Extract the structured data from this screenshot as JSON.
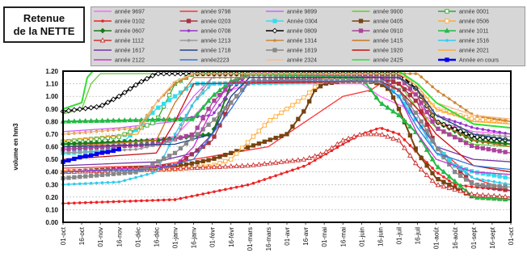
{
  "title": {
    "line1": "Retenue",
    "line2": "de la NETTE"
  },
  "chart_data": {
    "type": "line",
    "title": "Retenue de la NETTE",
    "ylabel": "volume en hm3",
    "xlabel": "",
    "ylim": [
      0,
      1.2
    ],
    "yticks": [
      "0.00",
      "0.10",
      "0.20",
      "0.30",
      "0.40",
      "0.50",
      "0.60",
      "0.70",
      "0.80",
      "0.90",
      "1.00",
      "1.10",
      "1.20"
    ],
    "x_ticks": [
      "01-oct",
      "16-oct",
      "01-nov",
      "16-nov",
      "01-déc",
      "16-déc",
      "01-janv",
      "16-janv",
      "01-févr",
      "16-févr",
      "01-mars",
      "16-mars",
      "01-avr",
      "16-avr",
      "01-mai",
      "16-mai",
      "01-juin",
      "16-juin",
      "01-juil",
      "16-juil",
      "01-août",
      "16-août",
      "01-sept",
      "16-sept",
      "01-oct"
    ],
    "grid": true,
    "legend_placement": "top",
    "series": [
      {
        "name": "année 9697",
        "color": "#ff66ff",
        "marker": "none",
        "x": [
          0,
          4,
          6,
          8,
          9,
          10,
          16,
          17,
          20,
          22,
          24
        ],
        "y": [
          0.6,
          0.65,
          0.68,
          1.0,
          1.05,
          1.1,
          1.1,
          1.0,
          0.8,
          0.72,
          0.7
        ]
      },
      {
        "name": "année 9798",
        "color": "#ff3333",
        "marker": "none",
        "x": [
          0,
          5,
          9,
          11,
          13,
          15,
          16.5,
          17,
          18,
          19,
          19.5,
          20,
          22,
          24
        ],
        "y": [
          0.43,
          0.45,
          0.55,
          0.6,
          0.8,
          1.0,
          1.05,
          1.1,
          1.1,
          1.0,
          0.8,
          0.6,
          0.35,
          0.25
        ]
      },
      {
        "name": "année 9899",
        "color": "#cc66ff",
        "marker": "none",
        "x": [
          0,
          3,
          6,
          7,
          8,
          17,
          18,
          19,
          20,
          22,
          24
        ],
        "y": [
          0.72,
          0.75,
          0.8,
          1.0,
          1.15,
          1.15,
          1.1,
          0.95,
          0.8,
          0.65,
          0.6
        ]
      },
      {
        "name": "année 9900",
        "color": "#66cc33",
        "marker": "none",
        "x": [
          0,
          1,
          1.5,
          2,
          17,
          18,
          19,
          20,
          22,
          24
        ],
        "y": [
          0.86,
          0.9,
          1.1,
          1.18,
          1.18,
          1.1,
          0.9,
          0.75,
          0.62,
          0.6
        ]
      },
      {
        "name": "année 0001",
        "color": "#33aa33",
        "marker": "square-open",
        "x": [
          0,
          3,
          5,
          6,
          7,
          18,
          19,
          20,
          22,
          24
        ],
        "y": [
          0.64,
          0.68,
          0.8,
          1.1,
          1.18,
          1.18,
          1.05,
          0.8,
          0.68,
          0.65
        ]
      },
      {
        "name": "année 0102",
        "color": "#ee2222",
        "marker": "dot",
        "x": [
          0,
          6,
          10,
          13,
          15,
          16,
          17,
          18,
          19,
          20,
          21,
          22,
          24
        ],
        "y": [
          0.15,
          0.18,
          0.3,
          0.45,
          0.62,
          0.7,
          0.75,
          0.7,
          0.55,
          0.4,
          0.3,
          0.28,
          0.25
        ]
      },
      {
        "name": "année 0203",
        "color": "#aa3344",
        "marker": "square",
        "x": [
          0,
          3,
          6,
          8,
          9,
          10,
          17,
          18,
          19,
          20,
          22,
          24
        ],
        "y": [
          0.4,
          0.42,
          0.45,
          0.65,
          0.95,
          1.12,
          1.15,
          1.1,
          0.95,
          0.6,
          0.3,
          0.25
        ]
      },
      {
        "name": "Année 0304",
        "color": "#33ddee",
        "marker": "square",
        "x": [
          0,
          2,
          3,
          5,
          7,
          17,
          18,
          19,
          20,
          21,
          22,
          24
        ],
        "y": [
          0.55,
          0.56,
          0.6,
          0.9,
          1.1,
          1.12,
          1.0,
          0.8,
          0.6,
          0.45,
          0.4,
          0.35
        ]
      },
      {
        "name": "année 0405",
        "color": "#774411",
        "marker": "square",
        "x": [
          0,
          3,
          6,
          8,
          10,
          11,
          12,
          13,
          13.5,
          14,
          15,
          16,
          17,
          17.5,
          18,
          19,
          20,
          22,
          24
        ],
        "y": [
          0.4,
          0.42,
          0.44,
          0.5,
          0.6,
          0.65,
          0.7,
          0.9,
          1.05,
          1.1,
          1.12,
          1.13,
          1.1,
          1.05,
          0.9,
          0.55,
          0.35,
          0.2,
          0.18
        ]
      },
      {
        "name": "année 0506",
        "color": "#ffaa33",
        "marker": "square-open",
        "x": [
          0,
          6,
          8,
          9,
          10,
          11,
          12,
          13,
          14,
          18,
          19,
          20,
          22,
          24
        ],
        "y": [
          0.4,
          0.42,
          0.45,
          0.5,
          0.65,
          0.8,
          0.9,
          1.0,
          1.15,
          1.15,
          1.05,
          0.9,
          0.82,
          0.8
        ]
      },
      {
        "name": "année 0607",
        "color": "#1a7a1a",
        "marker": "diamond",
        "x": [
          0,
          5,
          8,
          9,
          10,
          18,
          19,
          20,
          22,
          24
        ],
        "y": [
          0.62,
          0.65,
          0.7,
          1.1,
          1.18,
          1.18,
          1.05,
          0.8,
          0.65,
          0.62
        ]
      },
      {
        "name": "année 0708",
        "color": "#9933cc",
        "marker": "dot",
        "x": [
          0,
          6,
          8,
          9,
          10,
          18,
          19,
          20,
          22,
          24
        ],
        "y": [
          0.8,
          0.82,
          0.85,
          1.05,
          1.18,
          1.18,
          1.05,
          0.85,
          0.75,
          0.7
        ]
      },
      {
        "name": "année 0809",
        "color": "#000000",
        "marker": "diamond-open",
        "x": [
          0,
          2,
          3,
          4,
          5,
          18,
          19,
          20,
          22,
          24
        ],
        "y": [
          0.88,
          0.92,
          1.0,
          1.1,
          1.18,
          1.18,
          1.05,
          0.8,
          0.68,
          0.65
        ]
      },
      {
        "name": "année 0910",
        "color": "#aa4499",
        "marker": "square",
        "x": [
          0,
          5,
          7,
          8,
          9,
          10,
          18,
          19,
          20,
          22,
          24
        ],
        "y": [
          0.58,
          0.62,
          0.7,
          0.95,
          1.1,
          1.18,
          1.15,
          1.0,
          0.75,
          0.6,
          0.55
        ]
      },
      {
        "name": "année 1011",
        "color": "#22bb44",
        "marker": "triangle",
        "x": [
          0,
          7,
          8,
          9,
          10,
          16,
          17,
          18,
          19,
          20,
          22,
          24
        ],
        "y": [
          0.8,
          0.82,
          1.0,
          1.12,
          1.18,
          1.15,
          0.95,
          0.85,
          0.7,
          0.45,
          0.2,
          0.18
        ]
      },
      {
        "name": "année 1112",
        "color": "#cc3333",
        "marker": "triangle-open",
        "x": [
          0,
          5,
          10,
          13,
          14,
          15,
          16,
          17,
          18,
          18.5,
          19,
          20,
          22,
          24
        ],
        "y": [
          0.4,
          0.42,
          0.45,
          0.5,
          0.55,
          0.65,
          0.7,
          0.7,
          0.65,
          0.55,
          0.45,
          0.3,
          0.22,
          0.2
        ]
      },
      {
        "name": "année 1213",
        "color": "#999999",
        "marker": "dot",
        "x": [
          0,
          4,
          6,
          7,
          8,
          18,
          19,
          20,
          22,
          24
        ],
        "y": [
          0.55,
          0.58,
          0.65,
          0.95,
          1.15,
          1.15,
          1.05,
          0.85,
          0.7,
          0.68
        ]
      },
      {
        "name": "année 1314",
        "color": "#cc8833",
        "marker": "dot",
        "x": [
          0,
          4,
          5,
          6,
          7,
          19,
          20,
          22,
          24
        ],
        "y": [
          0.7,
          0.75,
          0.95,
          1.1,
          1.18,
          1.18,
          1.05,
          0.85,
          0.8
        ]
      },
      {
        "name": "année 1415",
        "color": "#cc7722",
        "marker": "none",
        "x": [
          0,
          5,
          6,
          7,
          18,
          19,
          20,
          22,
          24
        ],
        "y": [
          0.6,
          0.65,
          0.95,
          1.15,
          1.15,
          1.05,
          0.8,
          0.65,
          0.6
        ]
      },
      {
        "name": "année 1516",
        "color": "#33ccee",
        "marker": "dot",
        "x": [
          0,
          3,
          5,
          6,
          7,
          8,
          17,
          18,
          19,
          20,
          22,
          24
        ],
        "y": [
          0.3,
          0.32,
          0.4,
          0.7,
          0.95,
          1.1,
          1.12,
          1.05,
          0.8,
          0.55,
          0.35,
          0.3
        ]
      },
      {
        "name": "année 1617",
        "color": "#7733aa",
        "marker": "none",
        "x": [
          0,
          5,
          7,
          8,
          9,
          10,
          17,
          18,
          19,
          20,
          22,
          24
        ],
        "y": [
          0.45,
          0.48,
          0.55,
          0.7,
          1.0,
          1.15,
          1.15,
          1.05,
          0.8,
          0.6,
          0.5,
          0.48
        ]
      },
      {
        "name": "année 1718",
        "color": "#224488",
        "marker": "none",
        "x": [
          0,
          6,
          8,
          9,
          10,
          18,
          19,
          20,
          22,
          24
        ],
        "y": [
          0.6,
          0.62,
          0.7,
          1.0,
          1.15,
          1.15,
          1.05,
          0.85,
          0.7,
          0.65
        ]
      },
      {
        "name": "année 1819",
        "color": "#888888",
        "marker": "square",
        "x": [
          0,
          4,
          6,
          8,
          9,
          10,
          17,
          18,
          19,
          20,
          21,
          22,
          24
        ],
        "y": [
          0.35,
          0.4,
          0.55,
          0.8,
          0.95,
          1.12,
          1.12,
          1.05,
          0.85,
          0.6,
          0.4,
          0.3,
          0.28
        ]
      },
      {
        "name": "année 1920",
        "color": "#cc1111",
        "marker": "none",
        "x": [
          0,
          5,
          6,
          7,
          17,
          18,
          19,
          20,
          22,
          24
        ],
        "y": [
          0.5,
          0.55,
          0.8,
          1.1,
          1.12,
          1.05,
          0.9,
          0.7,
          0.45,
          0.4
        ]
      },
      {
        "name": "année 2021",
        "color": "#ffaa33",
        "marker": "none",
        "x": [
          0,
          4,
          5,
          6,
          7,
          18,
          19,
          20,
          22,
          24
        ],
        "y": [
          0.65,
          0.7,
          0.95,
          1.12,
          1.18,
          1.18,
          1.08,
          0.9,
          0.8,
          0.78
        ]
      },
      {
        "name": "année 2122",
        "color": "#cc33cc",
        "marker": "none",
        "x": [
          0,
          6,
          7,
          8,
          9,
          17,
          18,
          19,
          20,
          22,
          24
        ],
        "y": [
          0.4,
          0.45,
          0.6,
          0.9,
          1.12,
          1.12,
          1.0,
          0.7,
          0.5,
          0.4,
          0.38
        ]
      },
      {
        "name": "année2223",
        "color": "#3377dd",
        "marker": "none",
        "x": [
          0,
          5,
          7,
          8,
          9,
          10,
          17,
          18,
          19,
          20,
          22,
          24
        ],
        "y": [
          0.4,
          0.42,
          0.5,
          0.7,
          0.9,
          1.12,
          1.12,
          1.0,
          0.75,
          0.55,
          0.45,
          0.42
        ]
      },
      {
        "name": "année 2324",
        "color": "#ffbb88",
        "marker": "none",
        "x": [
          0,
          4,
          5,
          6,
          7,
          18,
          19,
          20,
          22,
          24
        ],
        "y": [
          0.7,
          0.75,
          0.95,
          1.12,
          1.18,
          1.18,
          1.1,
          0.95,
          0.85,
          0.82
        ]
      },
      {
        "name": "année 2425",
        "color": "#33dd33",
        "marker": "none",
        "x": [
          0,
          1,
          1.3,
          1.6,
          18,
          19,
          20,
          22,
          24
        ],
        "y": [
          0.9,
          0.95,
          1.15,
          1.2,
          1.2,
          1.1,
          0.95,
          0.78,
          0.75
        ]
      },
      {
        "name": "Année en cours",
        "color": "#0000ee",
        "marker": "square",
        "x": [
          0,
          0.5,
          1,
          1.5,
          2,
          2.5,
          3
        ],
        "y": [
          0.48,
          0.5,
          0.52,
          0.53,
          0.55,
          0.56,
          0.58
        ]
      }
    ]
  }
}
